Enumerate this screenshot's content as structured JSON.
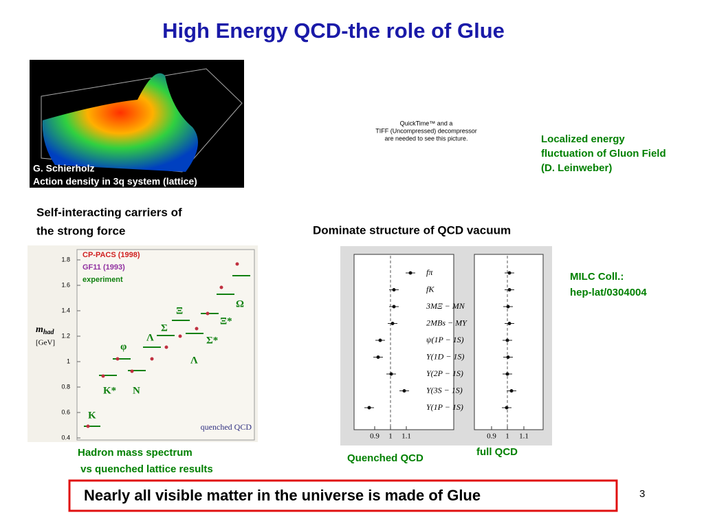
{
  "title": "High Energy QCD-the role of Glue",
  "lattice_image": {
    "credit": "G. Schierholz",
    "caption": "Action density in 3q system (lattice)"
  },
  "quicktime_placeholder": [
    "QuickTime™ and a",
    "TIFF (Uncompressed) decompressor",
    "are needed to see this picture."
  ],
  "gluon_caption": [
    "Localized energy",
    "fluctuation of Gluon Field",
    "(D. Leinweber)"
  ],
  "left_heading": [
    "Self-interacting carriers of",
    "the strong force"
  ],
  "right_heading": "Dominate structure of QCD vacuum",
  "spectrum_plot": {
    "legend": [
      "CP-PACS (1998)",
      "GF11 (1993)",
      "experiment"
    ],
    "y_label": {
      "symbol": "m",
      "subscript": "had",
      "unit": "[GeV]"
    },
    "yticks": [
      "1.8",
      "1.6",
      "1.4",
      "1.2",
      "1",
      "0.8",
      "0.6",
      "0.4"
    ],
    "particles": [
      "K",
      "K*",
      "N",
      "φ",
      "Λ",
      "Σ",
      "Ξ",
      "Λ",
      "Σ*",
      "Ξ*",
      "Ω"
    ],
    "note": "quenched QCD"
  },
  "spectrum_caption": [
    "Hadron mass spectrum",
    " vs quenched lattice results"
  ],
  "ratio_plot": {
    "rows": [
      "fπ",
      "fK",
      "3MΞ − MN",
      "2MBs − MΥ",
      "ψ(1P − 1S)",
      "Υ(1D − 1S)",
      "Υ(2P − 1S)",
      "Υ(3S − 1S)",
      "Υ(1P − 1S)"
    ],
    "xticks": [
      "0.9",
      "1",
      "1.1"
    ]
  },
  "quenched_label": "Quenched QCD",
  "full_label": "full QCD",
  "milc": [
    "MILC Coll.:",
    "hep-lat/0304004"
  ],
  "footer": "Nearly all visible matter in the universe is made of Glue",
  "page_number": "3"
}
